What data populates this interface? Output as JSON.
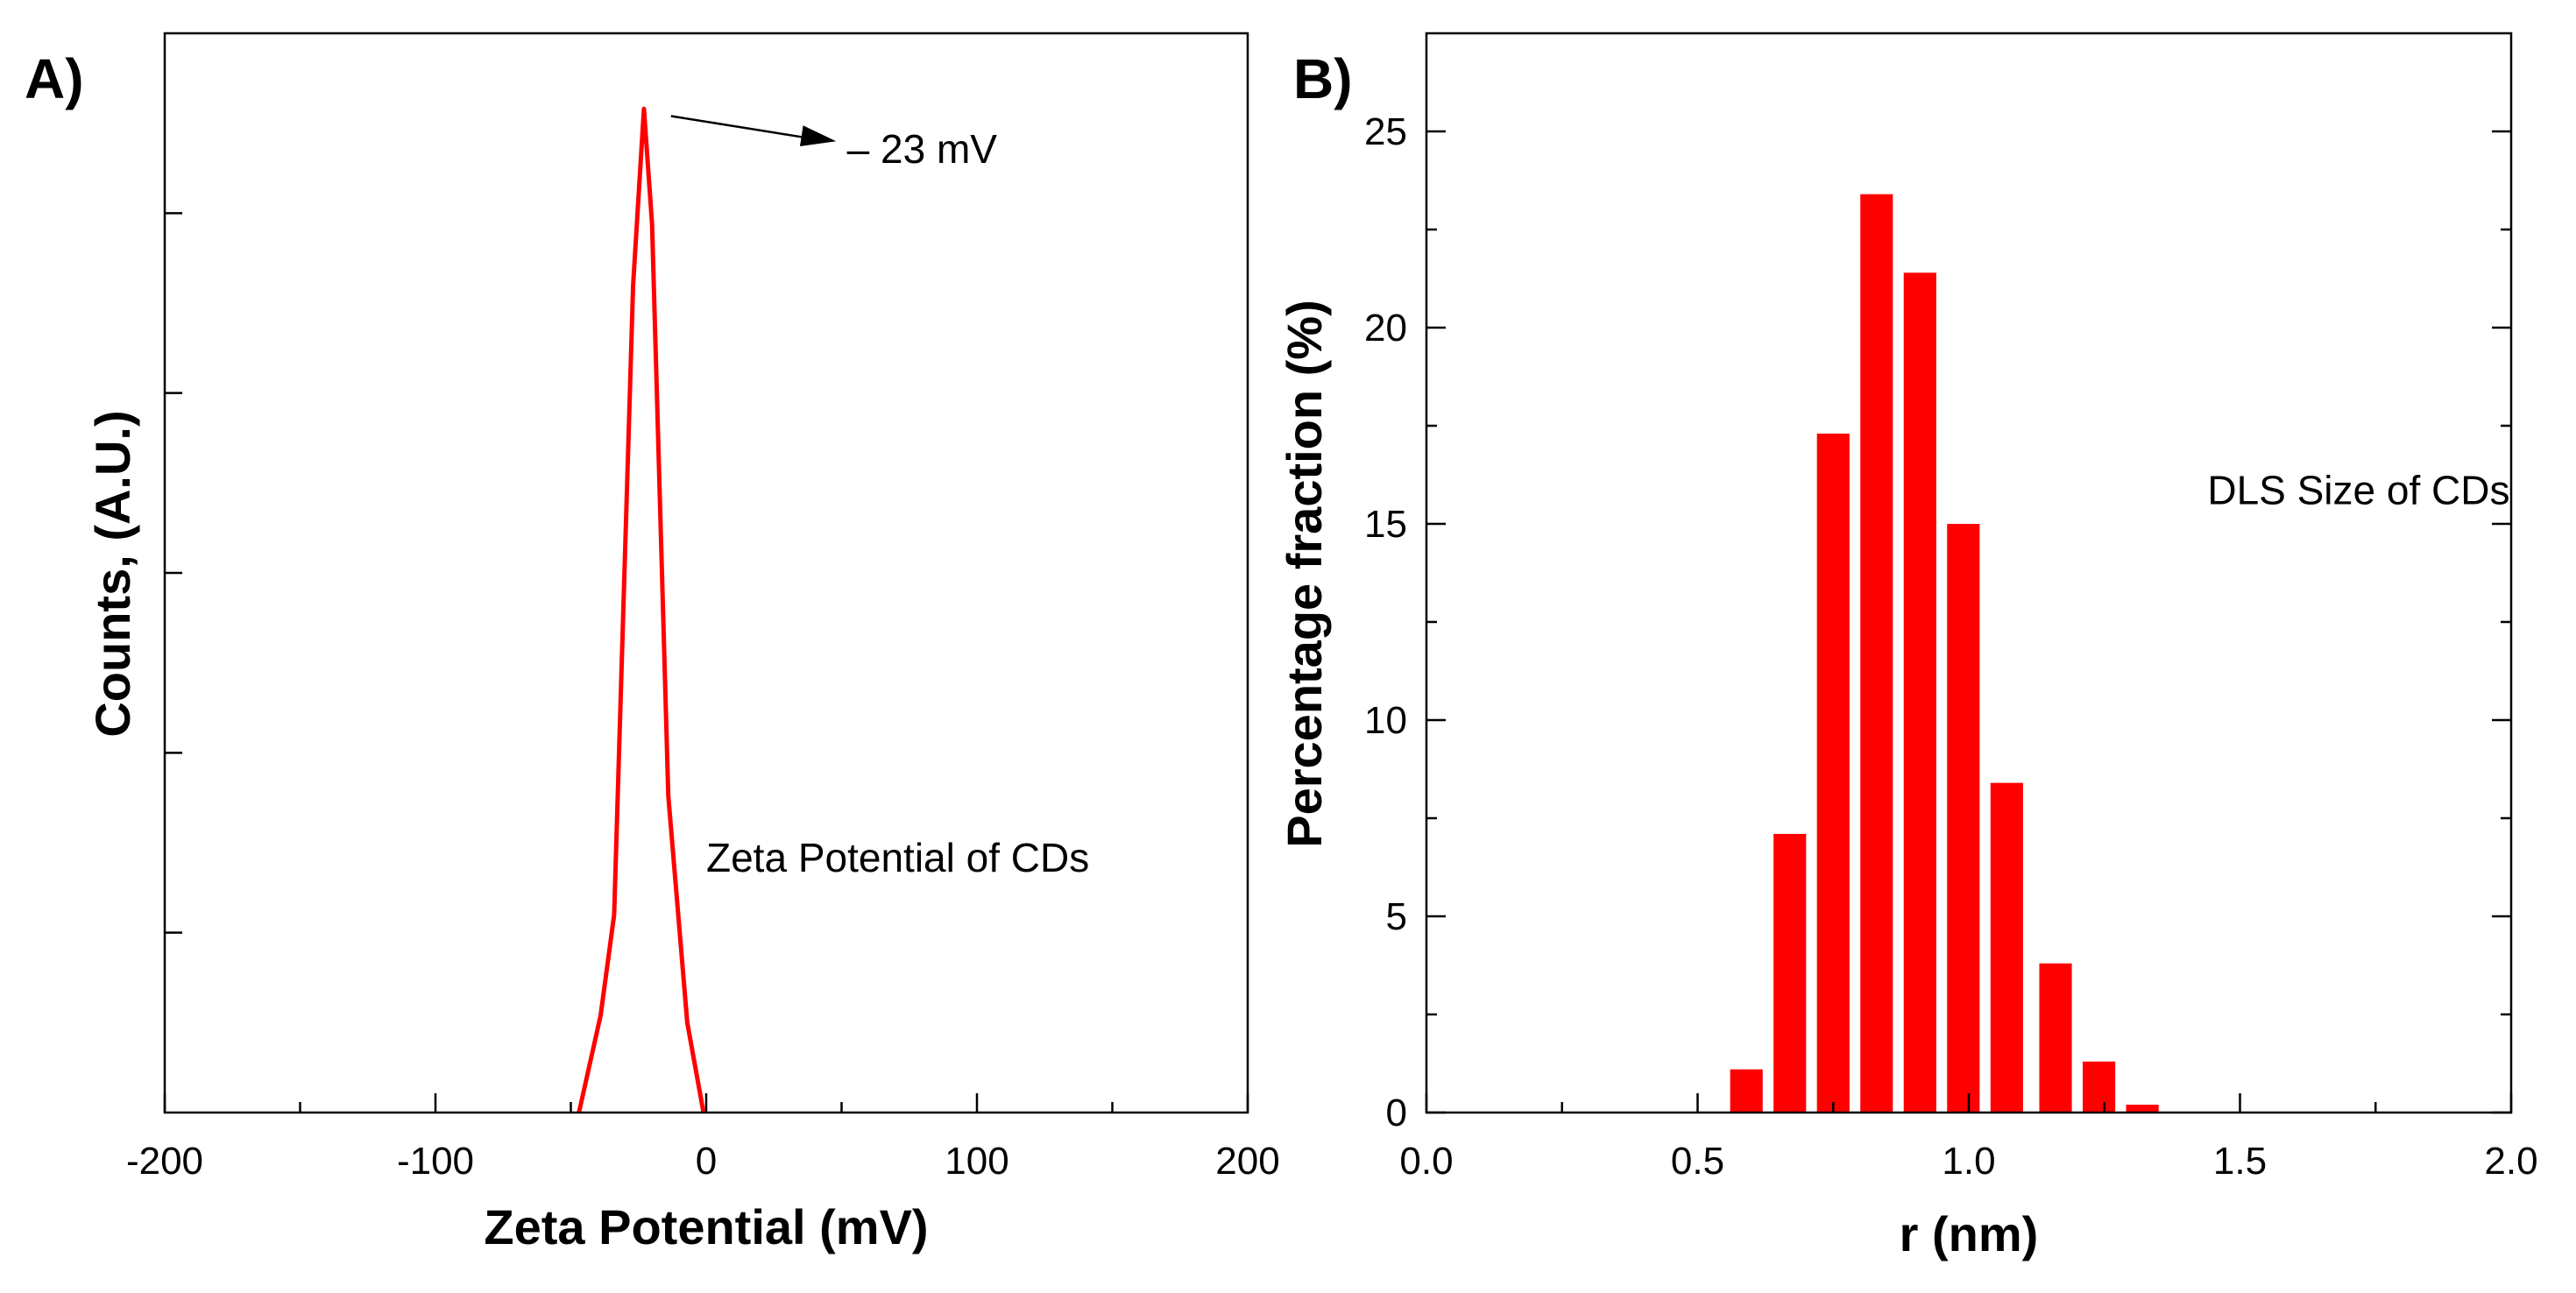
{
  "colors": {
    "series": "#ff0000",
    "axes": "#000000",
    "background": "#ffffff"
  },
  "chart_data": [
    {
      "type": "line",
      "panel_label": "A)",
      "title": "",
      "xlabel": "Zeta Potential (mV)",
      "ylabel": "Counts, (A.U.)",
      "xlim": [
        -200,
        200
      ],
      "ylim": [
        0,
        300
      ],
      "x_ticks": [
        "-200",
        "-100",
        "0",
        "100",
        "200"
      ],
      "x_tick_values": [
        -200,
        -100,
        0,
        100,
        200
      ],
      "x_minor_ticks": [
        -150,
        -50,
        50,
        150
      ],
      "y_ticks": [
        50,
        100,
        150,
        200,
        250
      ],
      "y_tick_labels_visible": false,
      "series": [
        {
          "name": "Zeta Potential of CDs",
          "x": [
            -47,
            -39,
            -34,
            -27,
            -23,
            -20,
            -14,
            -7,
            -1
          ],
          "y": [
            0,
            27,
            55,
            230,
            279,
            247,
            88,
            25,
            0
          ]
        }
      ],
      "annotations": [
        {
          "text": "Zeta Potential of CDs",
          "x": 0,
          "y": 67
        },
        {
          "text": "– 23 mV",
          "x": 52,
          "y": 264,
          "arrow_from": [
            -13,
            277
          ],
          "arrow_to": [
            48,
            270
          ]
        }
      ]
    },
    {
      "type": "bar",
      "panel_label": "B)",
      "title": "",
      "xlabel": "r (nm)",
      "ylabel": "Percentage fraction (%)",
      "xlim": [
        0.0,
        2.0
      ],
      "ylim": [
        0,
        27.5
      ],
      "x_ticks": [
        "0.0",
        "0.5",
        "1.0",
        "1.5",
        "2.0"
      ],
      "x_tick_values": [
        0.0,
        0.5,
        1.0,
        1.5,
        2.0
      ],
      "x_minor_ticks": [
        0.25,
        0.75,
        1.25,
        1.75
      ],
      "y_ticks": [
        "0",
        "5",
        "10",
        "15",
        "20",
        "25"
      ],
      "y_tick_values": [
        0,
        5,
        10,
        15,
        20,
        25
      ],
      "y_minor_ticks": [
        2.5,
        7.5,
        12.5,
        17.5,
        22.5
      ],
      "bar_width": 0.06,
      "series": [
        {
          "name": "DLS Size of CDs",
          "x": [
            0.59,
            0.67,
            0.75,
            0.83,
            0.91,
            0.99,
            1.07,
            1.16,
            1.24,
            1.32
          ],
          "values": [
            1.1,
            7.1,
            17.3,
            23.4,
            21.4,
            15.0,
            8.4,
            3.8,
            1.3,
            0.2
          ]
        }
      ],
      "annotations": [
        {
          "text": "DLS Size of CDs",
          "x": 1.44,
          "y": 15.5
        }
      ]
    }
  ]
}
